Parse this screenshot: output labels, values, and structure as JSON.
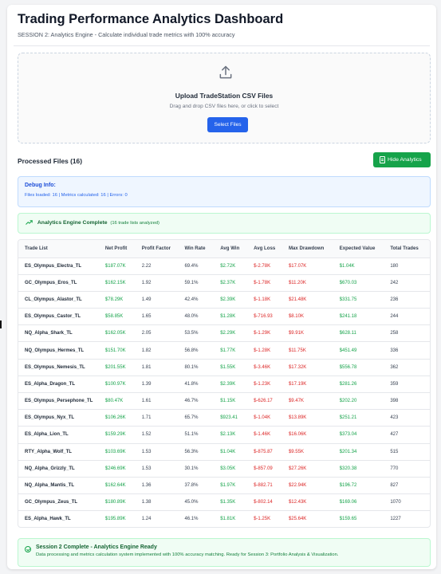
{
  "header": {
    "title": "Trading Performance Analytics Dashboard",
    "subtitle": "SESSION 2: Analytics Engine - Calculate individual trade metrics with 100% accuracy"
  },
  "upload": {
    "icon": "upload-icon",
    "title": "Upload TradeStation CSV Files",
    "description": "Drag and drop CSV files here, or click to select",
    "button_label": "Select Files"
  },
  "processed": {
    "title": "Processed Files (16)",
    "hide_button_label": "Hide Analytics"
  },
  "debug": {
    "title": "Debug Info:",
    "text": "Files loaded: 16 | Metrics calculated: 16 | Errors: 0"
  },
  "engine_status": {
    "title": "Analytics Engine Complete",
    "note": "(16 trade lists analyzed)"
  },
  "table": {
    "headers": [
      "Trade List",
      "Net Profit",
      "Profit Factor",
      "Win Rate",
      "Avg Win",
      "Avg Loss",
      "Max Drawdown",
      "Expected Value",
      "Total Trades"
    ],
    "rows": [
      [
        "ES_Olympus_Electra_TL",
        "$187.07K",
        "2.22",
        "69.4%",
        "$2.72K",
        "$-2.78K",
        "$17.07K",
        "$1.04K",
        "180"
      ],
      [
        "GC_Olympus_Eros_TL",
        "$162.15K",
        "1.92",
        "59.1%",
        "$2.37K",
        "$-1.78K",
        "$11.20K",
        "$670.03",
        "242"
      ],
      [
        "CL_Olympus_Alastor_TL",
        "$78.29K",
        "1.49",
        "42.4%",
        "$2.39K",
        "$-1.18K",
        "$21.48K",
        "$331.75",
        "236"
      ],
      [
        "ES_Olympus_Castor_TL",
        "$58.85K",
        "1.65",
        "48.0%",
        "$1.28K",
        "$-716.93",
        "$8.10K",
        "$241.18",
        "244"
      ],
      [
        "NQ_Alpha_Shark_TL",
        "$162.05K",
        "2.05",
        "53.5%",
        "$2.29K",
        "$-1.29K",
        "$9.91K",
        "$628.11",
        "258"
      ],
      [
        "NQ_Olympus_Hermes_TL",
        "$151.70K",
        "1.82",
        "56.8%",
        "$1.77K",
        "$-1.28K",
        "$11.75K",
        "$451.49",
        "336"
      ],
      [
        "ES_Olympus_Nemesis_TL",
        "$201.55K",
        "1.81",
        "80.1%",
        "$1.55K",
        "$-3.46K",
        "$17.32K",
        "$556.78",
        "362"
      ],
      [
        "ES_Alpha_Dragon_TL",
        "$100.97K",
        "1.39",
        "41.8%",
        "$2.39K",
        "$-1.23K",
        "$17.19K",
        "$281.26",
        "359"
      ],
      [
        "ES_Olympus_Persephone_TL",
        "$80.47K",
        "1.61",
        "46.7%",
        "$1.15K",
        "$-626.17",
        "$9.47K",
        "$202.20",
        "398"
      ],
      [
        "ES_Olympus_Nyx_TL",
        "$106.26K",
        "1.71",
        "65.7%",
        "$923.41",
        "$-1.04K",
        "$13.89K",
        "$251.21",
        "423"
      ],
      [
        "ES_Alpha_Lion_TL",
        "$159.29K",
        "1.52",
        "51.1%",
        "$2.13K",
        "$-1.46K",
        "$16.06K",
        "$373.04",
        "427"
      ],
      [
        "RTY_Alpha_Wolf_TL",
        "$103.69K",
        "1.53",
        "56.3%",
        "$1.04K",
        "$-875.87",
        "$9.55K",
        "$201.34",
        "515"
      ],
      [
        "NQ_Alpha_Grizzly_TL",
        "$246.69K",
        "1.53",
        "30.1%",
        "$3.05K",
        "$-857.09",
        "$27.26K",
        "$320.38",
        "770"
      ],
      [
        "NQ_Alpha_Mantis_TL",
        "$162.64K",
        "1.36",
        "37.8%",
        "$1.97K",
        "$-882.71",
        "$22.94K",
        "$196.72",
        "827"
      ],
      [
        "GC_Olympus_Zeus_TL",
        "$180.89K",
        "1.38",
        "45.0%",
        "$1.35K",
        "$-802.14",
        "$12.43K",
        "$169.06",
        "1070"
      ],
      [
        "ES_Alpha_Hawk_TL",
        "$195.89K",
        "1.24",
        "46.1%",
        "$1.81K",
        "$-1.25K",
        "$25.64K",
        "$159.65",
        "1227"
      ]
    ]
  },
  "footer": {
    "title": "Session 2 Complete - Analytics Engine Ready",
    "text": "Data processing and metrics calculation system implemented with 100% accuracy matching. Ready for Session 3: Portfolio Analysis & Visualization."
  },
  "colors": {
    "positive": "#16a34a",
    "negative": "#dc2626",
    "accent": "#2563eb"
  }
}
